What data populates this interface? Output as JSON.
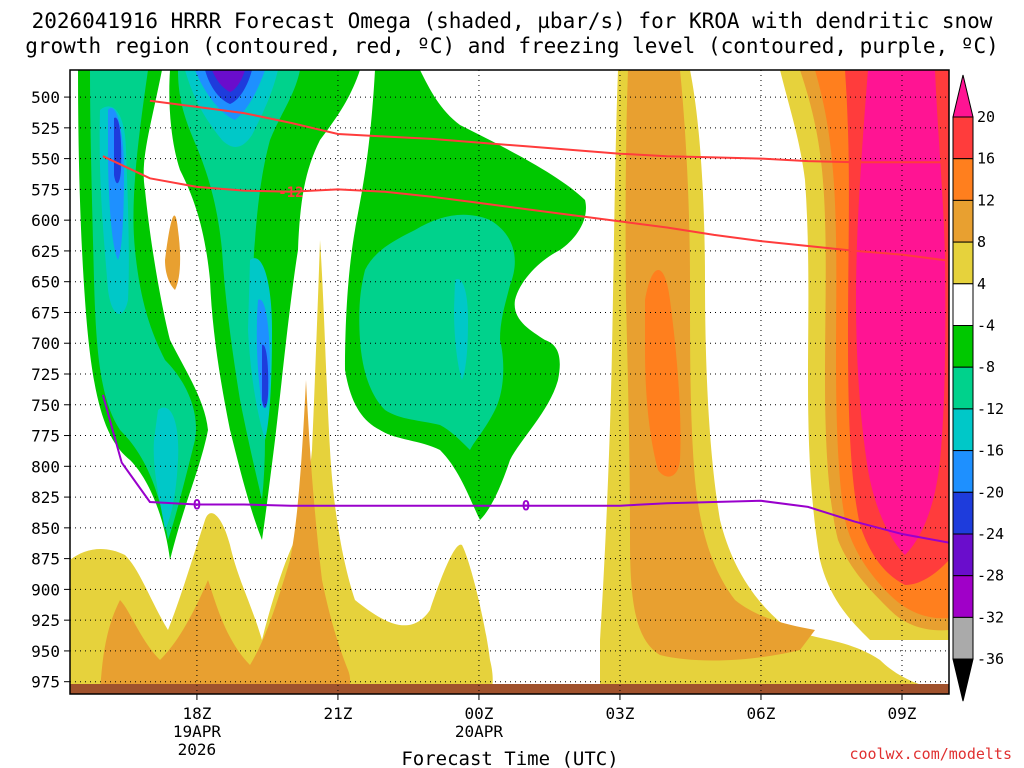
{
  "title_line1": "2026041916 HRRR Forecast Omega (shaded, µbar/s) for KROA with dendritic snow",
  "title_line2": "growth region (contoured, red, ºC) and freezing level (contoured, purple, ºC)",
  "credit": "coolwx.com/modelts",
  "chart_data": {
    "type": "heatmap",
    "title": "2026041916 HRRR Forecast Omega (shaded, µbar/s) for KROA with dendritic snow growth region (contoured, red, ºC) and freezing level (contoured, purple, ºC)",
    "xlabel": "Forecast Time (UTC)",
    "ylabel": "",
    "y_ticks": [
      "500",
      "525",
      "550",
      "575",
      "600",
      "625",
      "650",
      "675",
      "700",
      "725",
      "750",
      "775",
      "800",
      "825",
      "850",
      "875",
      "900",
      "925",
      "950",
      "975"
    ],
    "x_ticks": [
      {
        "hour": 18,
        "lines": [
          "18Z",
          "19APR",
          "2026"
        ]
      },
      {
        "hour": 21,
        "lines": [
          "21Z"
        ]
      },
      {
        "hour": 24,
        "lines": [
          "00Z",
          "20APR"
        ]
      },
      {
        "hour": 27,
        "lines": [
          "03Z"
        ]
      },
      {
        "hour": 30,
        "lines": [
          "06Z"
        ]
      },
      {
        "hour": 33,
        "lines": [
          "09Z"
        ]
      }
    ],
    "colorbar": {
      "labels": [
        "20",
        "16",
        "12",
        "8",
        "4",
        "-4",
        "-8",
        "-12",
        "-16",
        "-20",
        "-24",
        "-28",
        "-32",
        "-36"
      ],
      "colors": [
        "#ff1493",
        "#ff3c3c",
        "#ff7f1e",
        "#e8a030",
        "#e6d23c",
        "#ffffff",
        "#00c800",
        "#00d28c",
        "#00c8c8",
        "#1e90ff",
        "#1e3cdc",
        "#6a0dcc",
        "#a000c8",
        "#aaaaaa",
        "#000000"
      ]
    },
    "contours": [
      {
        "name": "-12",
        "color": "#ff3c3c",
        "label_hour": 20.0,
        "points": [
          [
            16,
            548
          ],
          [
            17,
            566
          ],
          [
            18,
            573
          ],
          [
            19,
            576
          ],
          [
            20,
            577
          ],
          [
            21,
            575
          ],
          [
            22,
            577
          ],
          [
            23,
            581
          ],
          [
            24,
            586
          ],
          [
            25,
            591
          ],
          [
            26,
            596
          ],
          [
            27,
            601
          ],
          [
            28,
            606
          ],
          [
            29,
            612
          ],
          [
            30,
            617
          ],
          [
            31,
            621
          ],
          [
            32,
            625
          ],
          [
            33,
            628
          ],
          [
            34,
            633
          ]
        ]
      },
      {
        "name": "upper",
        "color": "#ff3c3c",
        "points": [
          [
            17,
            503
          ],
          [
            18,
            508
          ],
          [
            19,
            513
          ],
          [
            20,
            521
          ],
          [
            21,
            530
          ],
          [
            22,
            532
          ],
          [
            23,
            534
          ],
          [
            24,
            537
          ],
          [
            25,
            540
          ],
          [
            26,
            543
          ],
          [
            27,
            546
          ],
          [
            28,
            548
          ],
          [
            29,
            549
          ],
          [
            30,
            550
          ],
          [
            31,
            552
          ],
          [
            32,
            553
          ],
          [
            33,
            553
          ],
          [
            34,
            553
          ]
        ]
      },
      {
        "name": "0",
        "color": "#9900cc",
        "label_hour": 18.0,
        "points": [
          [
            16,
            742
          ],
          [
            16.4,
            797
          ],
          [
            17,
            829
          ],
          [
            18,
            831
          ],
          [
            19,
            831
          ],
          [
            20,
            832
          ],
          [
            21,
            832
          ],
          [
            22,
            832
          ],
          [
            23,
            832
          ],
          [
            24,
            832
          ],
          [
            25,
            832
          ],
          [
            26,
            832
          ],
          [
            27,
            832
          ],
          [
            28,
            830
          ],
          [
            29,
            829
          ],
          [
            30,
            828
          ],
          [
            31,
            833
          ],
          [
            32,
            845
          ],
          [
            33,
            855
          ],
          [
            34,
            862
          ]
        ]
      }
    ]
  }
}
